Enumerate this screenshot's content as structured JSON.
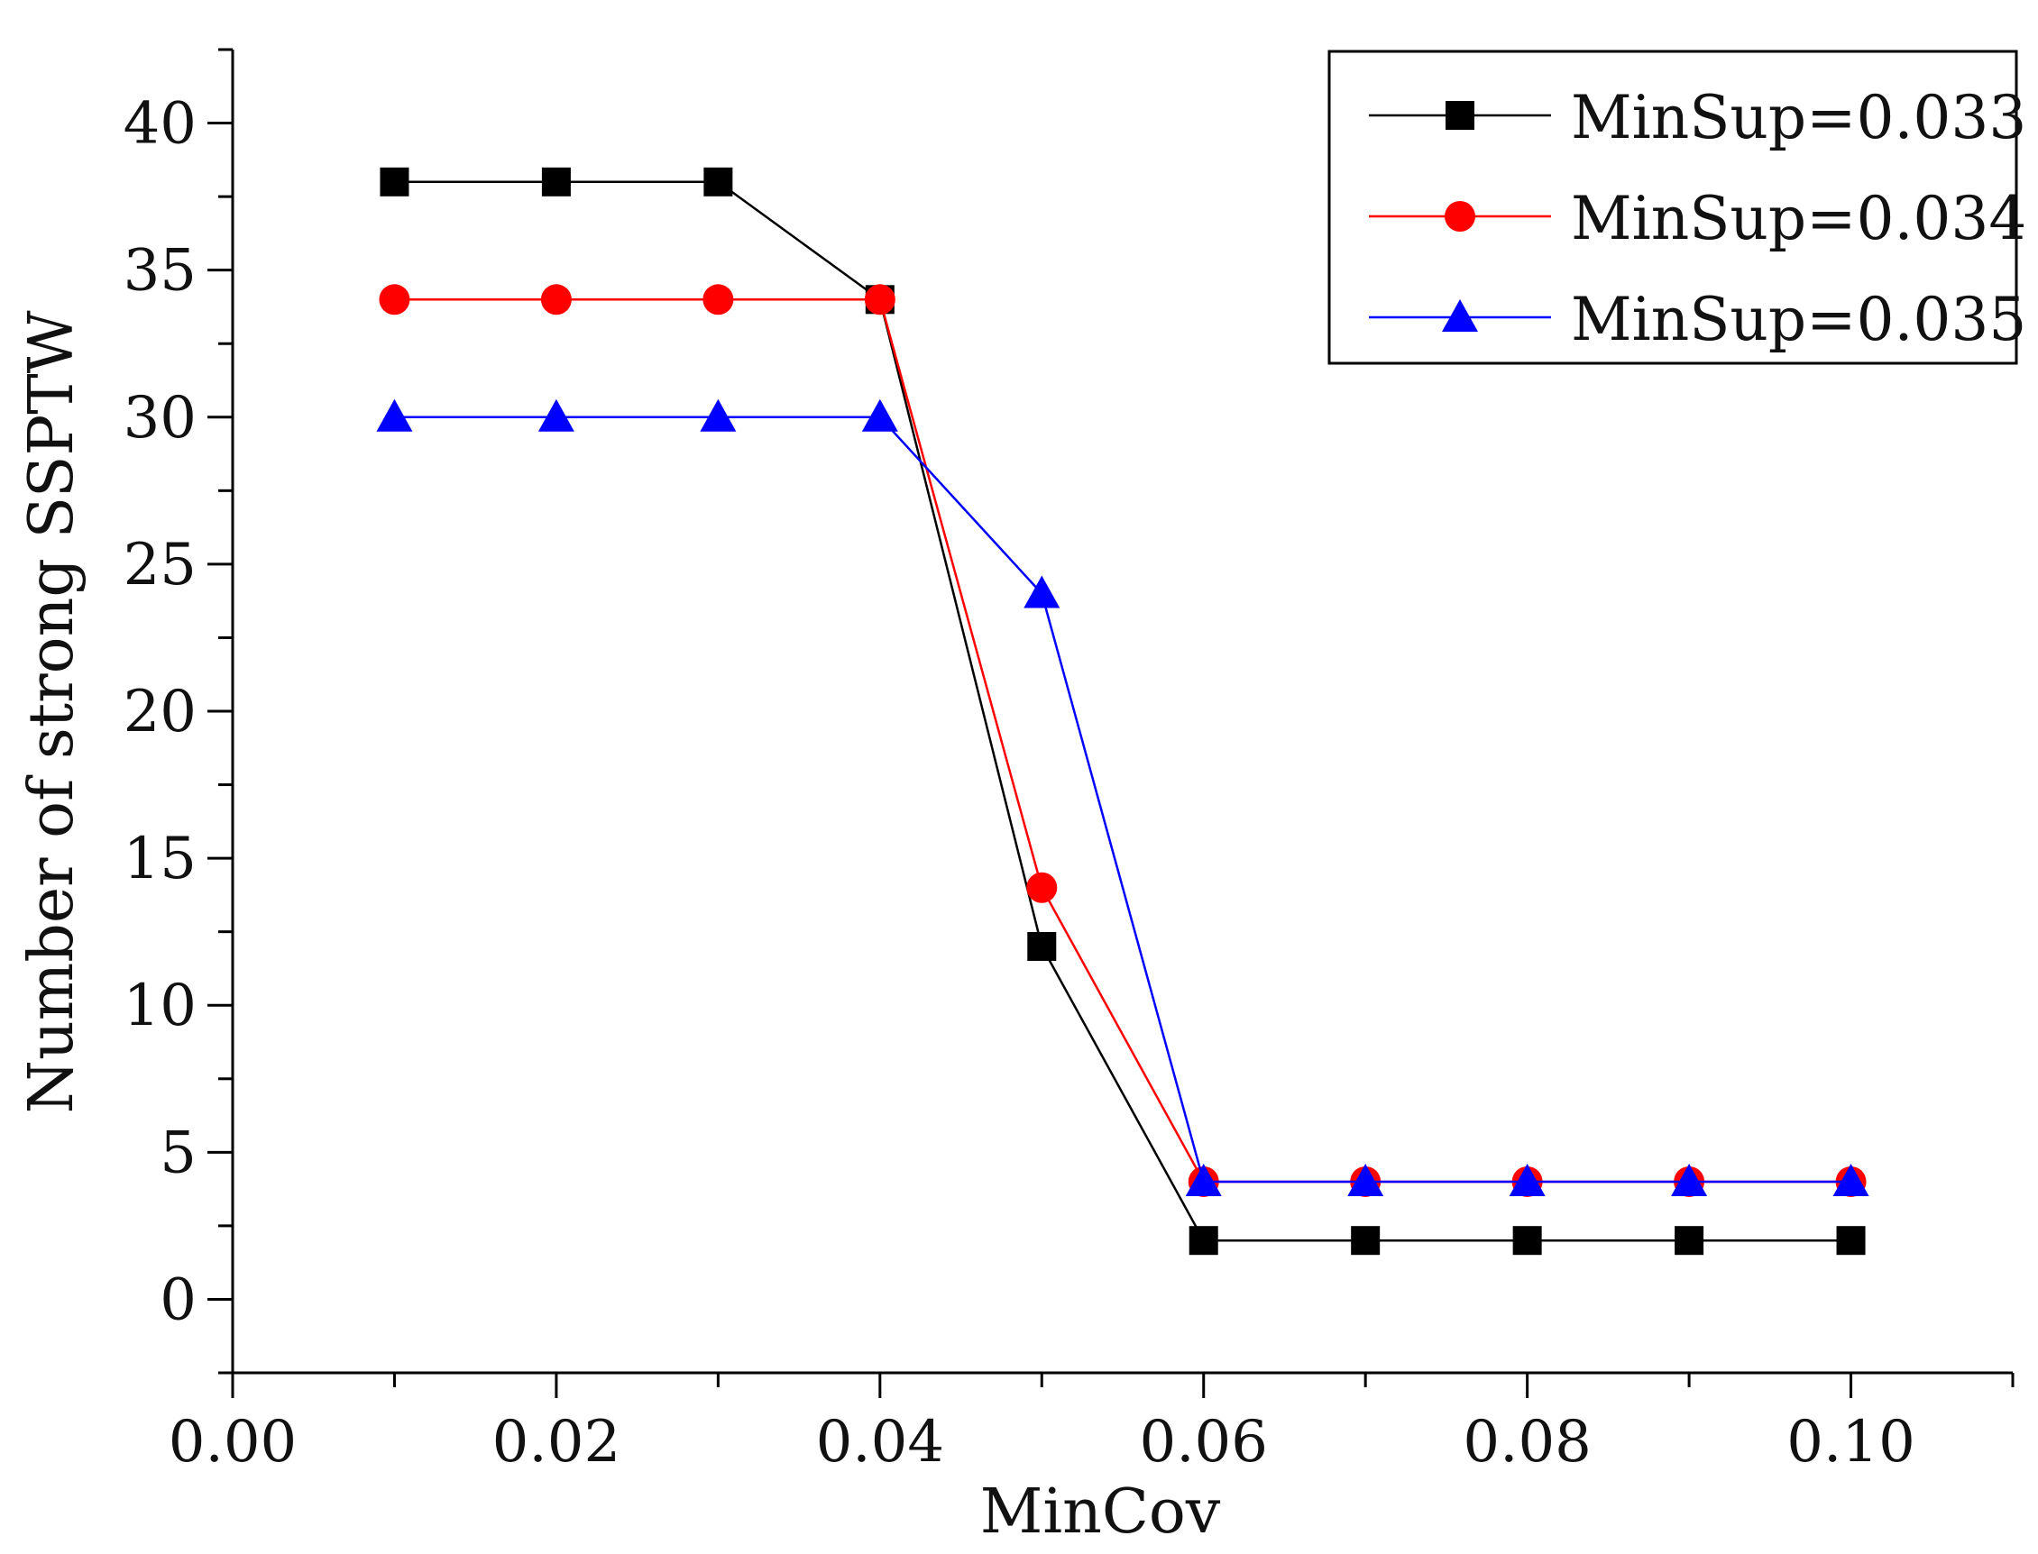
{
  "chart_data": {
    "type": "line",
    "xlabel": "MinCov",
    "ylabel": "Number of strong SSPTW",
    "xlim": [
      0.0,
      0.11
    ],
    "ylim": [
      -2.5,
      42.5
    ],
    "x_ticks": [
      "0.00",
      "0.02",
      "0.04",
      "0.06",
      "0.08",
      "0.10"
    ],
    "y_ticks": [
      "0",
      "5",
      "10",
      "15",
      "20",
      "25",
      "30",
      "35",
      "40"
    ],
    "x": [
      0.01,
      0.02,
      0.03,
      0.04,
      0.05,
      0.06,
      0.07,
      0.08,
      0.09,
      0.1
    ],
    "series": [
      {
        "name": "MinSup=0.033",
        "color": "#000000",
        "marker": "square",
        "values": [
          38,
          38,
          38,
          34,
          12,
          2,
          2,
          2,
          2,
          2
        ]
      },
      {
        "name": "MinSup=0.034",
        "color": "#ff0000",
        "marker": "circle",
        "values": [
          34,
          34,
          34,
          34,
          14,
          4,
          4,
          4,
          4,
          4
        ]
      },
      {
        "name": "MinSup=0.035",
        "color": "#0000ff",
        "marker": "triangle",
        "values": [
          30,
          30,
          30,
          30,
          24,
          4,
          4,
          4,
          4,
          4
        ]
      }
    ],
    "legend_position": "top-right",
    "grid": false
  }
}
